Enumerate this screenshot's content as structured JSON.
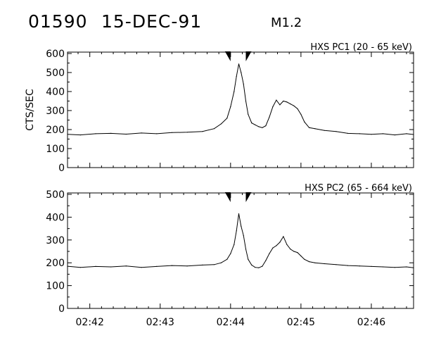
{
  "header": {
    "event_id": "01590",
    "date": "15-DEC-91",
    "flare_class": "M1.2"
  },
  "chart_data": [
    {
      "type": "line",
      "title": "HXS PC1 (20 - 65 keV)",
      "ylabel": "CTS/SEC",
      "ylim": [
        0,
        600
      ],
      "yticks": [
        0,
        100,
        200,
        300,
        400,
        500,
        600
      ],
      "xlim": [
        "02:41:41",
        "02:46:36"
      ],
      "xtick_labels": [
        "02:42",
        "02:43",
        "02:44",
        "02:45",
        "02:46"
      ],
      "xticks_visible": false,
      "markers": [
        "02:44:00",
        "02:44:13"
      ],
      "series": [
        {
          "x": [
            "02:41:41",
            "02:41:52",
            "02:42:05",
            "02:42:18",
            "02:42:31",
            "02:42:44",
            "02:42:57",
            "02:43:10",
            "02:43:23",
            "02:43:36",
            "02:43:46",
            "02:43:52",
            "02:43:57",
            "02:44:00",
            "02:44:03",
            "02:44:05",
            "02:44:07",
            "02:44:09",
            "02:44:11",
            "02:44:13",
            "02:44:15",
            "02:44:18",
            "02:44:21",
            "02:44:24",
            "02:44:27",
            "02:44:30",
            "02:44:33",
            "02:44:36",
            "02:44:39",
            "02:44:42",
            "02:44:45",
            "02:44:48",
            "02:44:51",
            "02:44:54",
            "02:44:57",
            "02:45:00",
            "02:45:03",
            "02:45:07",
            "02:45:12",
            "02:45:20",
            "02:45:30",
            "02:45:40",
            "02:45:50",
            "02:46:00",
            "02:46:10",
            "02:46:20",
            "02:46:30",
            "02:46:36"
          ],
          "y": [
            175,
            172,
            178,
            180,
            176,
            182,
            178,
            184,
            186,
            190,
            205,
            230,
            260,
            320,
            400,
            480,
            545,
            500,
            440,
            350,
            280,
            235,
            225,
            215,
            210,
            220,
            265,
            320,
            355,
            330,
            350,
            345,
            335,
            325,
            310,
            280,
            240,
            210,
            205,
            195,
            190,
            180,
            178,
            175,
            178,
            172,
            178,
            174
          ]
        }
      ]
    },
    {
      "type": "line",
      "title": "HXS PC2 (65 - 664 keV)",
      "ylabel": "",
      "ylim": [
        0,
        500
      ],
      "yticks": [
        0,
        100,
        200,
        300,
        400,
        500
      ],
      "xlim": [
        "02:41:41",
        "02:46:36"
      ],
      "xtick_labels": [
        "02:42",
        "02:43",
        "02:44",
        "02:45",
        "02:46"
      ],
      "xticks_visible": true,
      "markers": [
        "02:44:00",
        "02:44:13"
      ],
      "series": [
        {
          "x": [
            "02:41:41",
            "02:41:52",
            "02:42:05",
            "02:42:18",
            "02:42:31",
            "02:42:44",
            "02:42:57",
            "02:43:10",
            "02:43:23",
            "02:43:36",
            "02:43:46",
            "02:43:52",
            "02:43:57",
            "02:44:00",
            "02:44:03",
            "02:44:05",
            "02:44:07",
            "02:44:09",
            "02:44:11",
            "02:44:13",
            "02:44:15",
            "02:44:18",
            "02:44:21",
            "02:44:24",
            "02:44:27",
            "02:44:30",
            "02:44:33",
            "02:44:36",
            "02:44:39",
            "02:44:42",
            "02:44:45",
            "02:44:48",
            "02:44:51",
            "02:44:54",
            "02:44:57",
            "02:45:00",
            "02:45:03",
            "02:45:07",
            "02:45:12",
            "02:45:20",
            "02:45:30",
            "02:45:40",
            "02:45:50",
            "02:46:00",
            "02:46:10",
            "02:46:20",
            "02:46:30",
            "02:46:36"
          ],
          "y": [
            185,
            180,
            184,
            182,
            186,
            180,
            184,
            188,
            186,
            190,
            192,
            200,
            215,
            240,
            280,
            340,
            415,
            360,
            320,
            260,
            215,
            190,
            180,
            178,
            185,
            210,
            240,
            265,
            275,
            290,
            315,
            280,
            260,
            250,
            245,
            230,
            215,
            205,
            200,
            196,
            192,
            188,
            186,
            184,
            182,
            180,
            182,
            178
          ]
        }
      ]
    }
  ]
}
